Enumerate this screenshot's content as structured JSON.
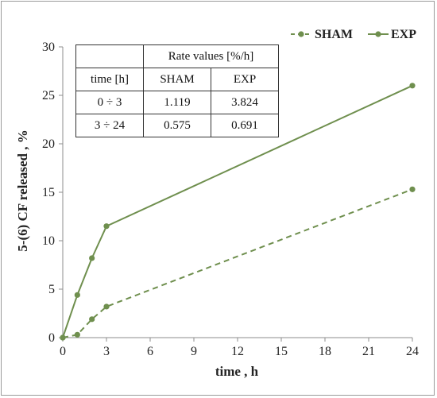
{
  "chart_data": {
    "type": "line",
    "title": "",
    "xlabel": "time , h",
    "ylabel": "5-(6) CF released , %",
    "x_ticks": [
      0,
      3,
      6,
      9,
      12,
      15,
      18,
      21,
      24
    ],
    "y_ticks": [
      0,
      5,
      10,
      15,
      20,
      25,
      30
    ],
    "xlim": [
      0,
      24
    ],
    "ylim": [
      0,
      30
    ],
    "grid": false,
    "legend_position": "top-right",
    "series": [
      {
        "name": "SHAM",
        "style": "dashed",
        "color": "#6f8f4e",
        "x": [
          0,
          1,
          2,
          3,
          24
        ],
        "y": [
          0,
          0.3,
          1.9,
          3.2,
          15.3
        ]
      },
      {
        "name": "EXP",
        "style": "solid",
        "color": "#6f8f4e",
        "x": [
          0,
          1,
          2,
          3,
          24
        ],
        "y": [
          0,
          4.4,
          8.2,
          11.5,
          26.0
        ]
      }
    ],
    "table": {
      "header": "Rate values [%/h]",
      "columns": [
        "time [h]",
        "SHAM",
        "EXP"
      ],
      "rows": [
        [
          "0 ÷ 3",
          "1.119",
          "3.824"
        ],
        [
          "3  ÷ 24",
          "0.575",
          "0.691"
        ]
      ]
    }
  }
}
